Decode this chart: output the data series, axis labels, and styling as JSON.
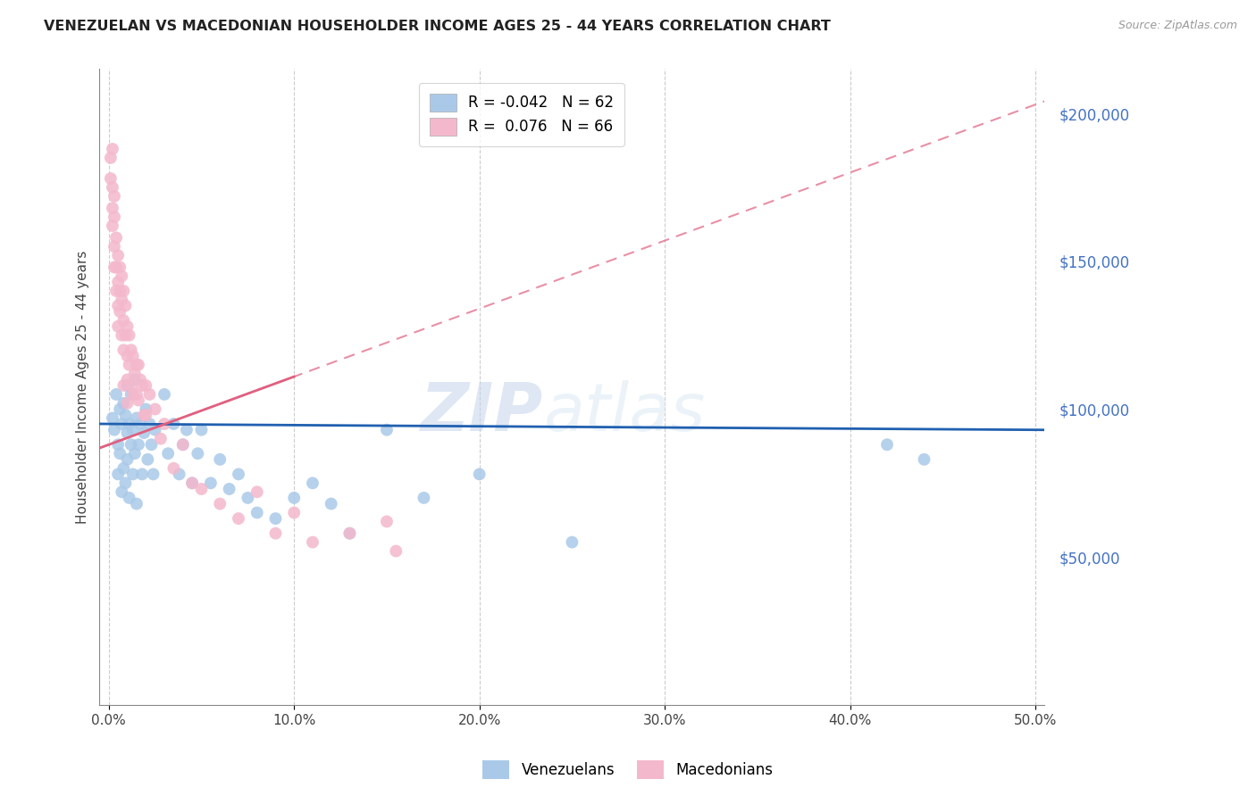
{
  "title": "VENEZUELAN VS MACEDONIAN HOUSEHOLDER INCOME AGES 25 - 44 YEARS CORRELATION CHART",
  "source": "Source: ZipAtlas.com",
  "ylabel": "Householder Income Ages 25 - 44 years",
  "xlabel_ticks": [
    "0.0%",
    "10.0%",
    "20.0%",
    "30.0%",
    "40.0%",
    "50.0%"
  ],
  "xlabel_vals": [
    0.0,
    0.1,
    0.2,
    0.3,
    0.4,
    0.5
  ],
  "ylabel_ticks": [
    "$50,000",
    "$100,000",
    "$150,000",
    "$200,000"
  ],
  "ylabel_vals": [
    50000,
    100000,
    150000,
    200000
  ],
  "ylim": [
    0,
    215000
  ],
  "xlim": [
    -0.005,
    0.505
  ],
  "watermark_zip": "ZIP",
  "watermark_atlas": "atlas",
  "venezuelan_color": "#aac9e8",
  "macedonian_color": "#f4b8cc",
  "venezuelan_line_color": "#2060b0",
  "macedonian_line_color": "#e06080",
  "venezuelan_R": -0.042,
  "venezuelan_N": 62,
  "macedonian_R": 0.076,
  "macedonian_N": 66,
  "venezuelan_x": [
    0.002,
    0.003,
    0.004,
    0.005,
    0.005,
    0.006,
    0.006,
    0.007,
    0.007,
    0.008,
    0.008,
    0.009,
    0.009,
    0.01,
    0.01,
    0.01,
    0.011,
    0.011,
    0.012,
    0.012,
    0.013,
    0.013,
    0.014,
    0.014,
    0.015,
    0.015,
    0.016,
    0.017,
    0.018,
    0.019,
    0.02,
    0.021,
    0.022,
    0.023,
    0.024,
    0.025,
    0.03,
    0.032,
    0.035,
    0.038,
    0.04,
    0.042,
    0.045,
    0.048,
    0.05,
    0.055,
    0.06,
    0.065,
    0.07,
    0.075,
    0.08,
    0.09,
    0.1,
    0.11,
    0.12,
    0.13,
    0.15,
    0.17,
    0.2,
    0.25,
    0.42,
    0.44
  ],
  "venezuelan_y": [
    97000,
    93000,
    105000,
    88000,
    78000,
    100000,
    85000,
    95000,
    72000,
    102000,
    80000,
    98000,
    75000,
    108000,
    92000,
    83000,
    95000,
    70000,
    88000,
    105000,
    93000,
    78000,
    110000,
    85000,
    97000,
    68000,
    88000,
    95000,
    78000,
    92000,
    100000,
    83000,
    95000,
    88000,
    78000,
    93000,
    105000,
    85000,
    95000,
    78000,
    88000,
    93000,
    75000,
    85000,
    93000,
    75000,
    83000,
    73000,
    78000,
    70000,
    65000,
    63000,
    70000,
    75000,
    68000,
    58000,
    93000,
    70000,
    78000,
    55000,
    88000,
    83000
  ],
  "macedonian_x": [
    0.001,
    0.001,
    0.002,
    0.002,
    0.002,
    0.002,
    0.003,
    0.003,
    0.003,
    0.003,
    0.004,
    0.004,
    0.004,
    0.005,
    0.005,
    0.005,
    0.005,
    0.006,
    0.006,
    0.006,
    0.007,
    0.007,
    0.007,
    0.008,
    0.008,
    0.008,
    0.008,
    0.009,
    0.009,
    0.01,
    0.01,
    0.01,
    0.01,
    0.011,
    0.011,
    0.012,
    0.012,
    0.013,
    0.013,
    0.014,
    0.015,
    0.015,
    0.016,
    0.016,
    0.017,
    0.018,
    0.019,
    0.02,
    0.02,
    0.022,
    0.025,
    0.028,
    0.03,
    0.035,
    0.04,
    0.045,
    0.05,
    0.06,
    0.07,
    0.08,
    0.09,
    0.1,
    0.11,
    0.13,
    0.15,
    0.155
  ],
  "macedonian_y": [
    185000,
    178000,
    188000,
    175000,
    168000,
    162000,
    172000,
    165000,
    155000,
    148000,
    158000,
    148000,
    140000,
    152000,
    143000,
    135000,
    128000,
    148000,
    140000,
    133000,
    145000,
    137000,
    125000,
    140000,
    130000,
    120000,
    108000,
    135000,
    125000,
    128000,
    118000,
    110000,
    102000,
    125000,
    115000,
    120000,
    108000,
    118000,
    105000,
    112000,
    115000,
    105000,
    115000,
    103000,
    110000,
    108000,
    98000,
    108000,
    98000,
    105000,
    100000,
    90000,
    95000,
    80000,
    88000,
    75000,
    73000,
    68000,
    63000,
    72000,
    58000,
    65000,
    55000,
    58000,
    62000,
    52000
  ]
}
